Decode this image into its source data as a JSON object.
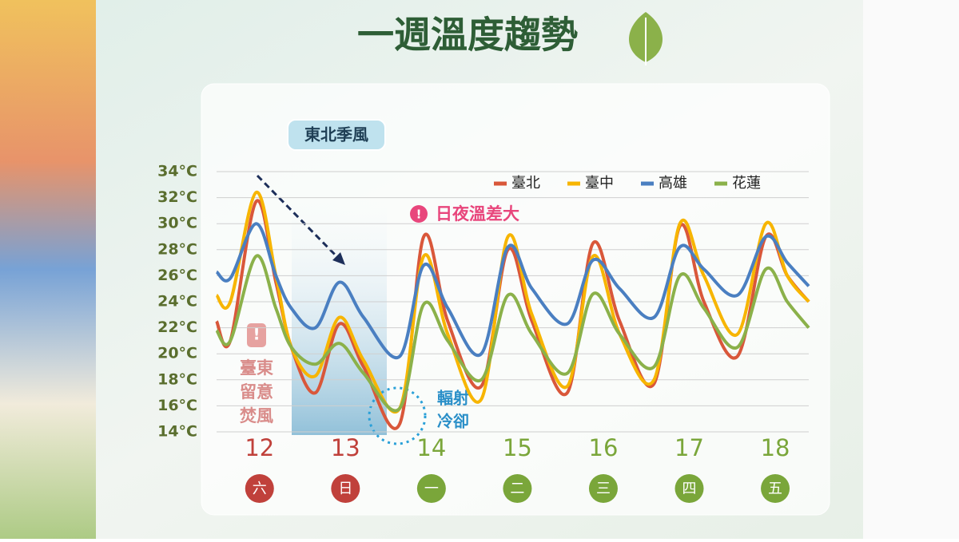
{
  "chart_data": {
    "type": "line",
    "title": "一週溫度趨勢",
    "annotations": {
      "monsoon": "東北季風",
      "diurnal": "日夜溫差大",
      "foehn": [
        "臺東",
        "留意",
        "焚風"
      ],
      "radiative": [
        "輻射",
        "冷卻"
      ]
    },
    "x": [
      11.5,
      11.66,
      11.96,
      12.19,
      12.37,
      12.65,
      12.93,
      13.21,
      13.63,
      13.91,
      14.19,
      14.58,
      14.89,
      15.17,
      15.58,
      15.88,
      16.19,
      16.59,
      16.89,
      17.17,
      17.56,
      17.89,
      18.14,
      18.39
    ],
    "xlim": [
      11.5,
      18.39
    ],
    "xticks": [
      12,
      13,
      14,
      15,
      16,
      17,
      18
    ],
    "weekdays": [
      "六",
      "日",
      "一",
      "二",
      "三",
      "四",
      "五"
    ],
    "weekday_colors": [
      "#c0413b",
      "#c0413b",
      "#7aa63a",
      "#7aa63a",
      "#7aa63a",
      "#7aa63a",
      "#7aa63a"
    ],
    "ylim": [
      14,
      34
    ],
    "yticks": [
      {
        "value": 14,
        "label": "14°C"
      },
      {
        "value": 16,
        "label": "16°C"
      },
      {
        "value": 18,
        "label": "18°C"
      },
      {
        "value": 20,
        "label": "20°C"
      },
      {
        "value": 22,
        "label": "22°C"
      },
      {
        "value": 24,
        "label": "24°C"
      },
      {
        "value": 26,
        "label": "26°C"
      },
      {
        "value": 28,
        "label": "28°C"
      },
      {
        "value": 30,
        "label": "30°C"
      },
      {
        "value": 32,
        "label": "32°C"
      },
      {
        "value": 34,
        "label": "34°C"
      }
    ],
    "grid": true,
    "legend": "top-right",
    "series": [
      {
        "name": "臺北",
        "color": "#d9573a",
        "values": [
          22.5,
          21,
          31.7,
          25.5,
          20.5,
          17,
          22.3,
          19,
          14.6,
          29,
          22.5,
          17.5,
          28,
          22.5,
          17,
          28.5,
          22.5,
          17.7,
          29.8,
          24,
          19.8,
          29,
          26,
          24
        ]
      },
      {
        "name": "臺中",
        "color": "#f7b500",
        "values": [
          24.5,
          24,
          32.4,
          26,
          20.5,
          18.3,
          22.8,
          19.5,
          15.8,
          27.5,
          21.5,
          16.5,
          29,
          23,
          17.5,
          27.5,
          21.5,
          18,
          30,
          26,
          21.5,
          30,
          26,
          24
        ]
      },
      {
        "name": "高雄",
        "color": "#4a7fc1",
        "values": [
          26.3,
          25.8,
          30,
          26,
          23.5,
          22,
          25.5,
          22.8,
          19.8,
          26.8,
          23.5,
          20,
          28.2,
          25,
          22.3,
          27.2,
          25,
          22.8,
          28.2,
          26.5,
          24.5,
          29,
          27,
          25.2
        ]
      },
      {
        "name": "花蓮",
        "color": "#8bb14a",
        "values": [
          21.8,
          21,
          27.5,
          23.5,
          20.5,
          19.2,
          20.8,
          18.5,
          15.8,
          23.8,
          21,
          18,
          24.5,
          21.5,
          18.5,
          24.6,
          21.5,
          19,
          26,
          23.5,
          20.5,
          26.5,
          24,
          22
        ]
      }
    ]
  }
}
